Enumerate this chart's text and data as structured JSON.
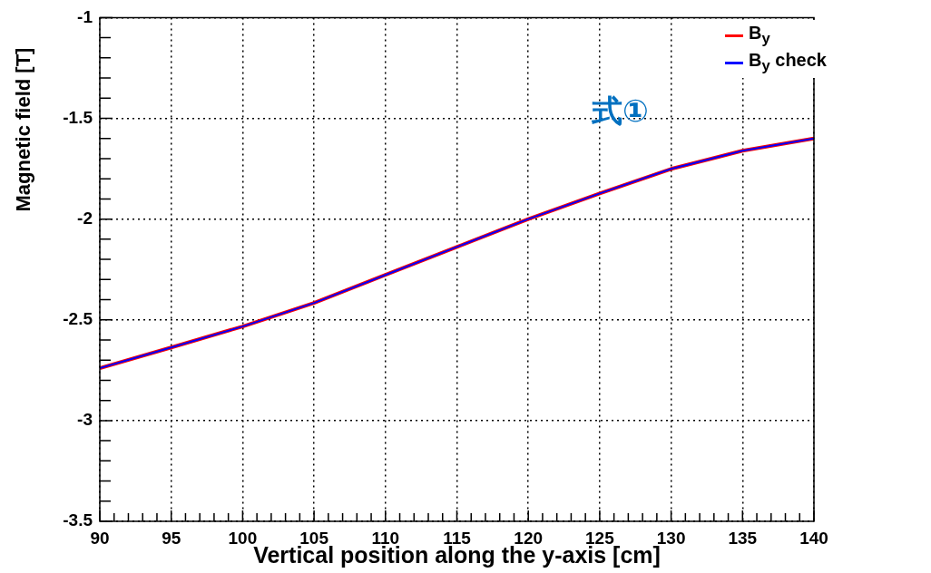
{
  "chart_data": {
    "type": "line",
    "xlabel": "Vertical position along the y-axis [cm]",
    "ylabel": "Magnetic field [T]",
    "x": [
      90,
      95,
      100,
      105,
      110,
      115,
      120,
      125,
      130,
      135,
      140
    ],
    "series": [
      {
        "name": "B$_{y}$",
        "color": "#ff0000",
        "values": [
          -2.74,
          -2.637,
          -2.533,
          -2.416,
          -2.277,
          -2.138,
          -2.0,
          -1.873,
          -1.751,
          -1.661,
          -1.6
        ]
      },
      {
        "name": "B$_{y}$ check",
        "color": "#0000ff",
        "values": [
          -2.74,
          -2.637,
          -2.533,
          -2.416,
          -2.277,
          -2.138,
          -2.0,
          -1.873,
          -1.751,
          -1.661,
          -1.6
        ]
      }
    ],
    "xlim": [
      90,
      140
    ],
    "xticks": [
      90,
      {
        "value": 91,
        "label": null
      },
      {
        "value": 92,
        "label": null
      },
      {
        "value": 93,
        "label": null
      },
      {
        "value": 94,
        "label": null
      },
      95,
      {
        "value": 96,
        "label": null
      },
      {
        "value": 97,
        "label": null
      },
      {
        "value": 98,
        "label": null
      },
      {
        "value": 99,
        "label": null
      },
      100,
      {
        "value": 101,
        "label": null
      },
      {
        "value": 102,
        "label": null
      },
      {
        "value": 103,
        "label": null
      },
      {
        "value": 104,
        "label": null
      },
      105,
      {
        "value": 106,
        "label": null
      },
      {
        "value": 107,
        "label": null
      },
      {
        "value": 108,
        "label": null
      },
      {
        "value": 109,
        "label": null
      },
      110,
      {
        "value": 111,
        "label": null
      },
      {
        "value": 112,
        "label": null
      },
      {
        "value": 113,
        "label": null
      },
      {
        "value": 114,
        "label": null
      },
      115,
      {
        "value": 116,
        "label": null
      },
      {
        "value": 117,
        "label": null
      },
      {
        "value": 118,
        "label": null
      },
      {
        "value": 119,
        "label": null
      },
      120,
      {
        "value": 121,
        "label": null
      },
      {
        "value": 122,
        "label": null
      },
      {
        "value": 123,
        "label": null
      },
      {
        "value": 124,
        "label": null
      },
      125,
      {
        "value": 126,
        "label": null
      },
      {
        "value": 127,
        "label": null
      },
      {
        "value": 128,
        "label": null
      },
      {
        "value": 129,
        "label": null
      },
      130,
      {
        "value": 131,
        "label": null
      },
      {
        "value": 132,
        "label": null
      },
      {
        "value": 133,
        "label": null
      },
      {
        "value": 134,
        "label": null
      },
      135,
      {
        "value": 136,
        "label": null
      },
      {
        "value": 137,
        "label": null
      },
      {
        "value": 138,
        "label": null
      },
      {
        "value": 139,
        "label": null
      },
      140
    ],
    "ylim": [
      -3.5,
      -1
    ],
    "yticks": [
      -3.5,
      {
        "value": -3.4,
        "label": null
      },
      {
        "value": -3.3,
        "label": null
      },
      {
        "value": -3.2,
        "label": null
      },
      {
        "value": -3.1,
        "label": null
      },
      -3,
      {
        "value": -2.9,
        "label": null
      },
      {
        "value": -2.8,
        "label": null
      },
      {
        "value": -2.7,
        "label": null
      },
      {
        "value": -2.6,
        "label": null
      },
      -2.5,
      {
        "value": -2.4,
        "label": null
      },
      {
        "value": -2.3,
        "label": null
      },
      {
        "value": -2.2,
        "label": null
      },
      {
        "value": -2.1,
        "label": null
      },
      -2,
      {
        "value": -1.9,
        "label": null
      },
      {
        "value": -1.8,
        "label": null
      },
      {
        "value": -1.7,
        "label": null
      },
      {
        "value": -1.6,
        "label": null
      },
      -1.5,
      {
        "value": -1.4,
        "label": null
      },
      {
        "value": -1.3,
        "label": null
      },
      {
        "value": -1.2,
        "label": null
      },
      {
        "value": -1.1,
        "label": null
      },
      -1
    ],
    "grid": true,
    "legend": "top right",
    "marker": "none",
    "line_style": "solid",
    "annotations": [
      "式①"
    ]
  }
}
